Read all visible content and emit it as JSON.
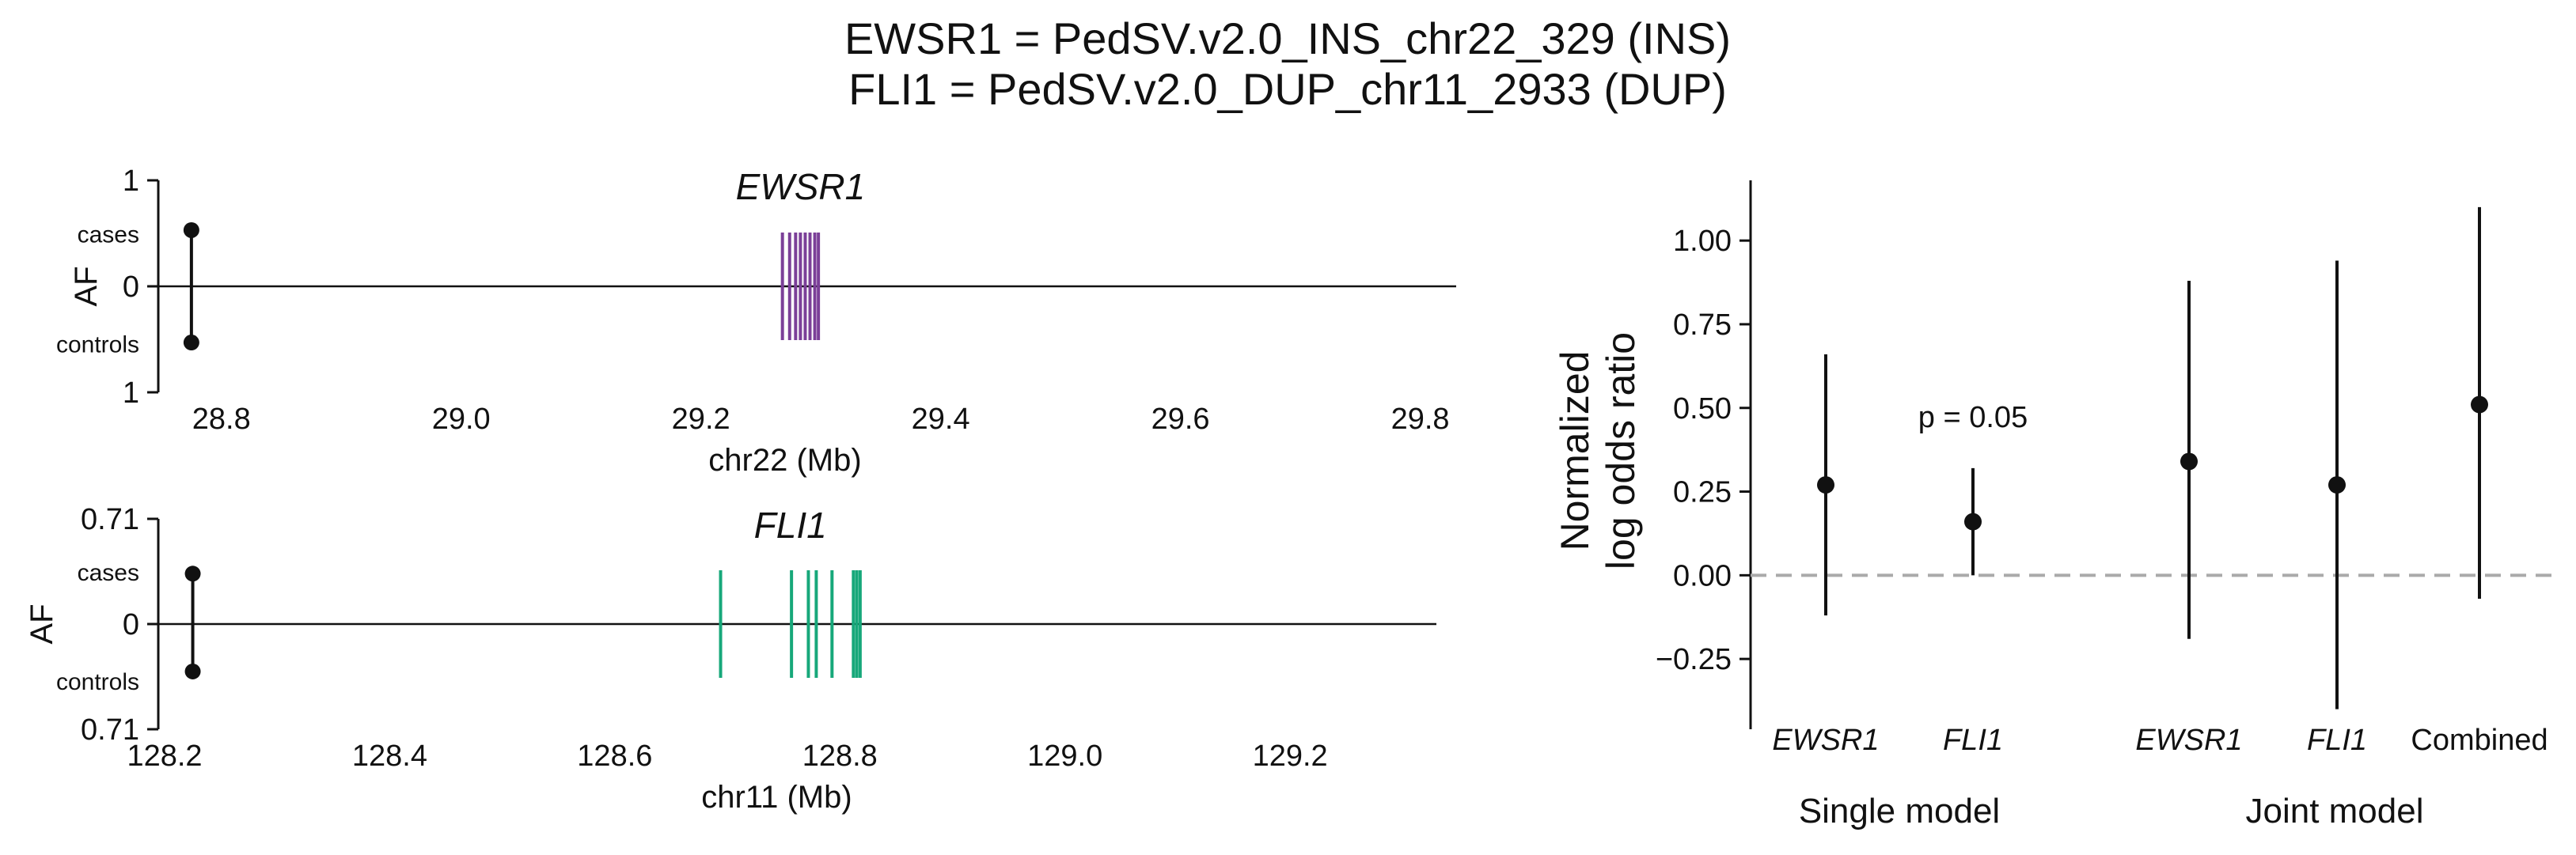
{
  "figure": {
    "title_lines": [
      "EWSR1 = PedSV.v2.0_INS_chr22_329 (INS)",
      "FLI1 = PedSV.v2.0_DUP_chr11_2933 (DUP)"
    ]
  },
  "chart_data": [
    {
      "type": "lollipop",
      "gene": "EWSR1",
      "xlabel": "chr22 (Mb)",
      "ylabel": "AF",
      "ytick_labels": [
        "1",
        "0",
        "1"
      ],
      "ytick_values": [
        1,
        0,
        -1
      ],
      "case_label": "cases",
      "control_label": "controls",
      "xlim": [
        28.75,
        29.83
      ],
      "xticks": [
        28.8,
        29.0,
        29.2,
        29.4,
        29.6,
        29.8
      ],
      "xtick_labels": [
        "28.8",
        "29.0",
        "29.2",
        "29.4",
        "29.6",
        "29.8"
      ],
      "sv": {
        "position": 28.775,
        "af_cases": 0.53,
        "af_controls": 0.53
      },
      "exon_color": "#7B3F98",
      "exons": [
        29.268,
        29.274,
        29.279,
        29.283,
        29.287,
        29.291,
        29.295,
        29.298
      ]
    },
    {
      "type": "lollipop",
      "gene": "FLI1",
      "xlabel": "chr11 (Mb)",
      "ylabel": "AF",
      "ytick_labels": [
        "0.71",
        "0",
        "0.71"
      ],
      "ytick_values": [
        0.71,
        0,
        -0.71
      ],
      "case_label": "cases",
      "control_label": "controls",
      "xlim": [
        128.2,
        129.33
      ],
      "xticks": [
        128.2,
        128.4,
        128.6,
        128.8,
        129.0,
        129.2
      ],
      "xtick_labels": [
        "128.2",
        "128.4",
        "128.6",
        "128.8",
        "129.0",
        "129.2"
      ],
      "sv": {
        "position": 128.225,
        "af_cases": 0.34,
        "af_controls": 0.32
      },
      "exon_color": "#17A87A",
      "exons": [
        128.694,
        128.757,
        128.772,
        128.779,
        128.793,
        128.812,
        128.815,
        128.818
      ]
    },
    {
      "type": "forest",
      "ylabel_lines": [
        "Normalized",
        "log odds ratio"
      ],
      "ylim": [
        -0.46,
        1.18
      ],
      "yticks": [
        -0.25,
        0.0,
        0.25,
        0.5,
        0.75,
        1.0
      ],
      "ytick_labels": [
        "−0.25",
        "0.00",
        "0.25",
        "0.50",
        "0.75",
        "1.00"
      ],
      "reference_line": 0,
      "reference_color": "#aaaaaa",
      "annotation": "p = 0.05",
      "groups": [
        {
          "label": "Single model",
          "category_indices": [
            0,
            1
          ]
        },
        {
          "label": "Joint model",
          "category_indices": [
            2,
            3,
            4
          ]
        }
      ],
      "points": [
        {
          "label": "EWSR1",
          "italic": true,
          "estimate": 0.27,
          "lower": -0.12,
          "upper": 0.66
        },
        {
          "label": "FLI1",
          "italic": true,
          "estimate": 0.16,
          "lower": 0.0,
          "upper": 0.32
        },
        {
          "label": "EWSR1",
          "italic": true,
          "estimate": 0.34,
          "lower": -0.19,
          "upper": 0.88
        },
        {
          "label": "FLI1",
          "italic": true,
          "estimate": 0.27,
          "lower": -0.4,
          "upper": 0.94
        },
        {
          "label": "Combined",
          "italic": false,
          "estimate": 0.51,
          "lower": -0.07,
          "upper": 1.1
        }
      ]
    }
  ]
}
